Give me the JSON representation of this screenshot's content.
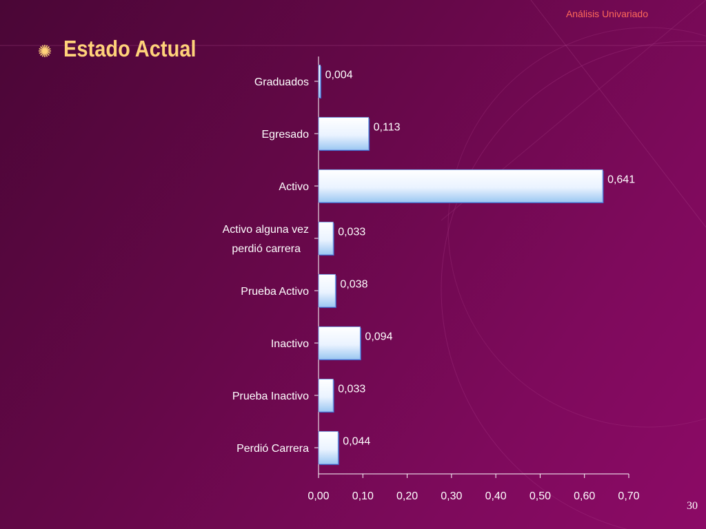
{
  "header": {
    "section": "Análisis Univariado"
  },
  "slide": {
    "title": "Estado Actual",
    "page_number": "30"
  },
  "icons": {
    "bullet": "sunburst-bullet-icon"
  },
  "colors": {
    "title": "#ffd27a",
    "header": "#ff6a5a",
    "bar_edge": "#4a78e0"
  },
  "chart_data": {
    "type": "bar",
    "orientation": "horizontal",
    "categories": [
      "Graduados",
      "Egresado",
      "Activo",
      "Activo alguna vez perdió carrera",
      "Prueba Activo",
      "Inactivo",
      "Prueba Inactivo",
      "Perdió Carrera"
    ],
    "values": [
      0.004,
      0.113,
      0.641,
      0.033,
      0.038,
      0.094,
      0.033,
      0.044
    ],
    "data_labels": [
      "0,004",
      "0,113",
      "0,641",
      "0,033",
      "0,038",
      "0,094",
      "0,033",
      "0,044"
    ],
    "xlim": [
      0,
      0.7
    ],
    "xticks": [
      0,
      0.1,
      0.2,
      0.3,
      0.4,
      0.5,
      0.6,
      0.7
    ],
    "xtick_labels": [
      "0,00",
      "0,10",
      "0,20",
      "0,30",
      "0,40",
      "0,50",
      "0,60",
      "0,70"
    ],
    "title": "",
    "xlabel": "",
    "ylabel": "",
    "grid": false,
    "legend": "none"
  }
}
